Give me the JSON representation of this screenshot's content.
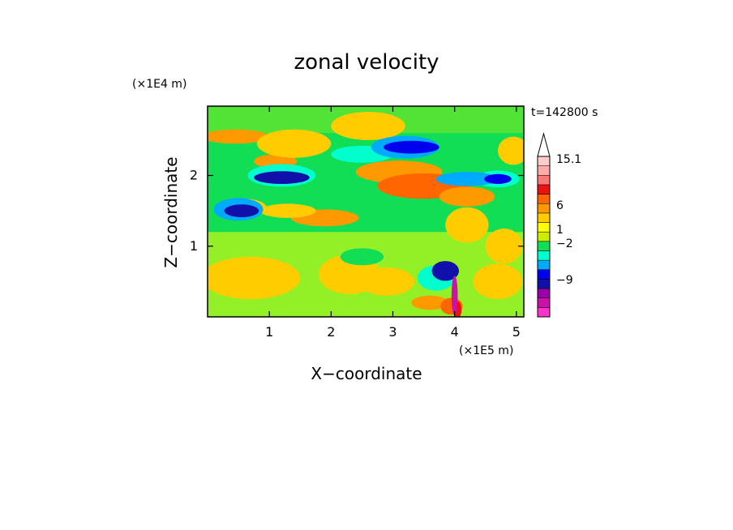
{
  "chart_data": {
    "type": "heatmap",
    "title": "zonal velocity",
    "xlabel": "X−coordinate",
    "ylabel": "Z−coordinate",
    "x_unit": "(×1E5 m)",
    "y_unit": "(×1E4 m)",
    "time_label": "t=142800 s",
    "xlim": [
      0,
      5.12
    ],
    "ylim": [
      0,
      2.98
    ],
    "x_ticks": [
      1,
      2,
      3,
      4,
      5
    ],
    "y_ticks": [
      1,
      2
    ],
    "x_tick_labels": [
      "1",
      "2",
      "3",
      "4",
      "5"
    ],
    "y_tick_labels": [
      "1",
      "2"
    ],
    "colorbar": {
      "colors": [
        "#ff33cc",
        "#cc11aa",
        "#9900aa",
        "#1111aa",
        "#0000ee",
        "#00aaff",
        "#00ffcc",
        "#11dd55",
        "#ccee00",
        "#ffff00",
        "#ffcc00",
        "#ff9900",
        "#ff6600",
        "#ee1111",
        "#ff7777",
        "#ffaaaa",
        "#ffcccc"
      ],
      "tick_labels": [
        "15.1",
        "6",
        "1",
        "−2",
        "−9"
      ],
      "extend_max": true
    },
    "blobs": [
      {
        "x": 0.45,
        "z": 2.55,
        "rx": 0.55,
        "rz": 0.1,
        "c": 11
      },
      {
        "x": 1.1,
        "z": 2.2,
        "rx": 0.35,
        "rz": 0.1,
        "c": 11
      },
      {
        "x": 1.4,
        "z": 2.45,
        "rx": 0.6,
        "rz": 0.2,
        "c": 10
      },
      {
        "x": 2.6,
        "z": 2.7,
        "rx": 0.6,
        "rz": 0.2,
        "c": 10
      },
      {
        "x": 3.1,
        "z": 2.05,
        "rx": 0.7,
        "rz": 0.16,
        "c": 11
      },
      {
        "x": 3.5,
        "z": 1.85,
        "rx": 0.75,
        "rz": 0.18,
        "c": 12
      },
      {
        "x": 4.2,
        "z": 1.7,
        "rx": 0.45,
        "rz": 0.14,
        "c": 11
      },
      {
        "x": 1.9,
        "z": 1.4,
        "rx": 0.55,
        "rz": 0.12,
        "c": 11
      },
      {
        "x": 1.3,
        "z": 1.5,
        "rx": 0.45,
        "rz": 0.1,
        "c": 10
      },
      {
        "x": 0.6,
        "z": 1.55,
        "rx": 0.35,
        "rz": 0.12,
        "c": 10
      },
      {
        "x": 0.7,
        "z": 0.55,
        "rx": 0.8,
        "rz": 0.3,
        "c": 10
      },
      {
        "x": 2.3,
        "z": 0.6,
        "rx": 0.5,
        "rz": 0.28,
        "c": 10
      },
      {
        "x": 2.9,
        "z": 0.5,
        "rx": 0.45,
        "rz": 0.2,
        "c": 10
      },
      {
        "x": 4.7,
        "z": 0.5,
        "rx": 0.4,
        "rz": 0.25,
        "c": 10
      },
      {
        "x": 4.95,
        "z": 2.35,
        "rx": 0.25,
        "rz": 0.2,
        "c": 10
      },
      {
        "x": 4.2,
        "z": 1.3,
        "rx": 0.35,
        "rz": 0.25,
        "c": 10
      },
      {
        "x": 4.8,
        "z": 1.0,
        "rx": 0.3,
        "rz": 0.25,
        "c": 10
      },
      {
        "x": 2.5,
        "z": 0.85,
        "rx": 0.35,
        "rz": 0.12,
        "c": 7
      },
      {
        "x": 3.6,
        "z": 0.2,
        "rx": 0.3,
        "rz": 0.1,
        "c": 11
      },
      {
        "x": 3.95,
        "z": 0.15,
        "rx": 0.18,
        "rz": 0.12,
        "c": 12
      },
      {
        "x": 4.05,
        "z": 0.1,
        "rx": 0.06,
        "rz": 0.12,
        "c": 13
      },
      {
        "x": 1.2,
        "z": 2.0,
        "rx": 0.55,
        "rz": 0.16,
        "c": 6
      },
      {
        "x": 0.5,
        "z": 1.52,
        "rx": 0.4,
        "rz": 0.16,
        "c": 5
      },
      {
        "x": 2.5,
        "z": 2.3,
        "rx": 0.5,
        "rz": 0.12,
        "c": 6
      },
      {
        "x": 3.2,
        "z": 2.4,
        "rx": 0.55,
        "rz": 0.16,
        "c": 5
      },
      {
        "x": 4.7,
        "z": 1.95,
        "rx": 0.35,
        "rz": 0.12,
        "c": 6
      },
      {
        "x": 4.2,
        "z": 1.95,
        "rx": 0.5,
        "rz": 0.1,
        "c": 5
      },
      {
        "x": 3.7,
        "z": 0.55,
        "rx": 0.3,
        "rz": 0.18,
        "c": 6
      },
      {
        "x": 1.2,
        "z": 1.97,
        "rx": 0.45,
        "rz": 0.09,
        "c": 3
      },
      {
        "x": 0.55,
        "z": 1.5,
        "rx": 0.28,
        "rz": 0.09,
        "c": 3
      },
      {
        "x": 3.3,
        "z": 2.4,
        "rx": 0.45,
        "rz": 0.09,
        "c": 4
      },
      {
        "x": 4.7,
        "z": 1.95,
        "rx": 0.22,
        "rz": 0.07,
        "c": 4
      },
      {
        "x": 3.85,
        "z": 0.65,
        "rx": 0.22,
        "rz": 0.14,
        "c": 3
      },
      {
        "x": 4.0,
        "z": 0.3,
        "rx": 0.05,
        "rz": 0.28,
        "c": 1
      }
    ]
  }
}
